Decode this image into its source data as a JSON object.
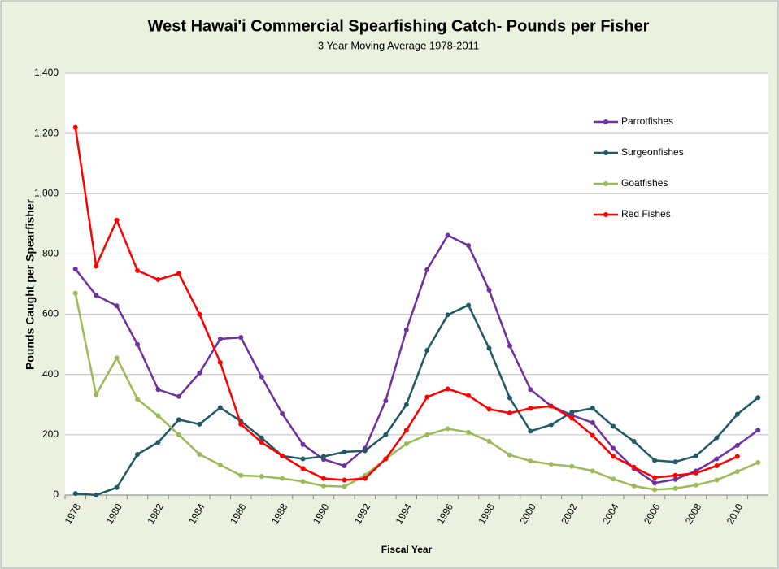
{
  "chart_data": {
    "type": "line",
    "title": "West Hawai'i Commercial Spearfishing Catch- Pounds per Fisher",
    "subtitle": "3 Year Moving Average 1978-2011",
    "x_label": "Fiscal Year",
    "y_label": "Pounds Caught per Spearfisher",
    "categories": [
      "1978",
      null,
      "1980",
      null,
      "1982",
      null,
      "1984",
      null,
      "1986",
      null,
      "1988",
      null,
      "1990",
      null,
      "1992",
      null,
      "1994",
      null,
      "1996",
      null,
      "1998",
      null,
      "2000",
      null,
      "2002",
      null,
      "2004",
      null,
      "2006",
      null,
      "2008",
      null,
      "2010",
      null
    ],
    "ylim": [
      0,
      1400
    ],
    "yticks": [
      0,
      200,
      400,
      600,
      800,
      {
        "value": 1000,
        "label": "1,000"
      },
      {
        "value": 1200,
        "label": "1,200"
      },
      {
        "value": 1400,
        "label": "1,400"
      }
    ],
    "grid": true,
    "legend": "upper right",
    "series": [
      {
        "name": "Parrotfishes",
        "color": "#7030a0",
        "values": [
          750,
          663,
          628,
          500,
          350,
          327,
          405,
          518,
          523,
          392,
          270,
          168,
          118,
          97,
          155,
          313,
          548,
          748,
          862,
          828,
          680,
          495,
          350,
          295,
          265,
          240,
          155,
          88,
          40,
          52,
          80,
          120,
          165,
          215
        ]
      },
      {
        "name": "Surgeonfishes",
        "color": "#215968",
        "values": [
          5,
          0,
          25,
          135,
          175,
          250,
          235,
          290,
          245,
          190,
          130,
          120,
          128,
          143,
          147,
          200,
          300,
          480,
          598,
          630,
          487,
          322,
          212,
          233,
          275,
          288,
          228,
          178,
          115,
          110,
          130,
          190,
          268,
          323
        ]
      },
      {
        "name": "Goatfishes",
        "color": "#9bbb59",
        "values": [
          670,
          333,
          455,
          318,
          263,
          200,
          135,
          100,
          65,
          62,
          55,
          45,
          30,
          28,
          65,
          120,
          170,
          200,
          220,
          208,
          178,
          133,
          113,
          102,
          95,
          80,
          53,
          30,
          18,
          22,
          33,
          50,
          78,
          108
        ]
      },
      {
        "name": "Red Fishes",
        "color": "#ff0000",
        "values": [
          1220,
          760,
          912,
          745,
          715,
          735,
          600,
          440,
          235,
          175,
          130,
          88,
          55,
          50,
          55,
          120,
          215,
          325,
          352,
          330,
          285,
          272,
          288,
          295,
          255,
          198,
          128,
          92,
          58,
          65,
          73,
          97,
          128,
          null
        ]
      }
    ]
  }
}
